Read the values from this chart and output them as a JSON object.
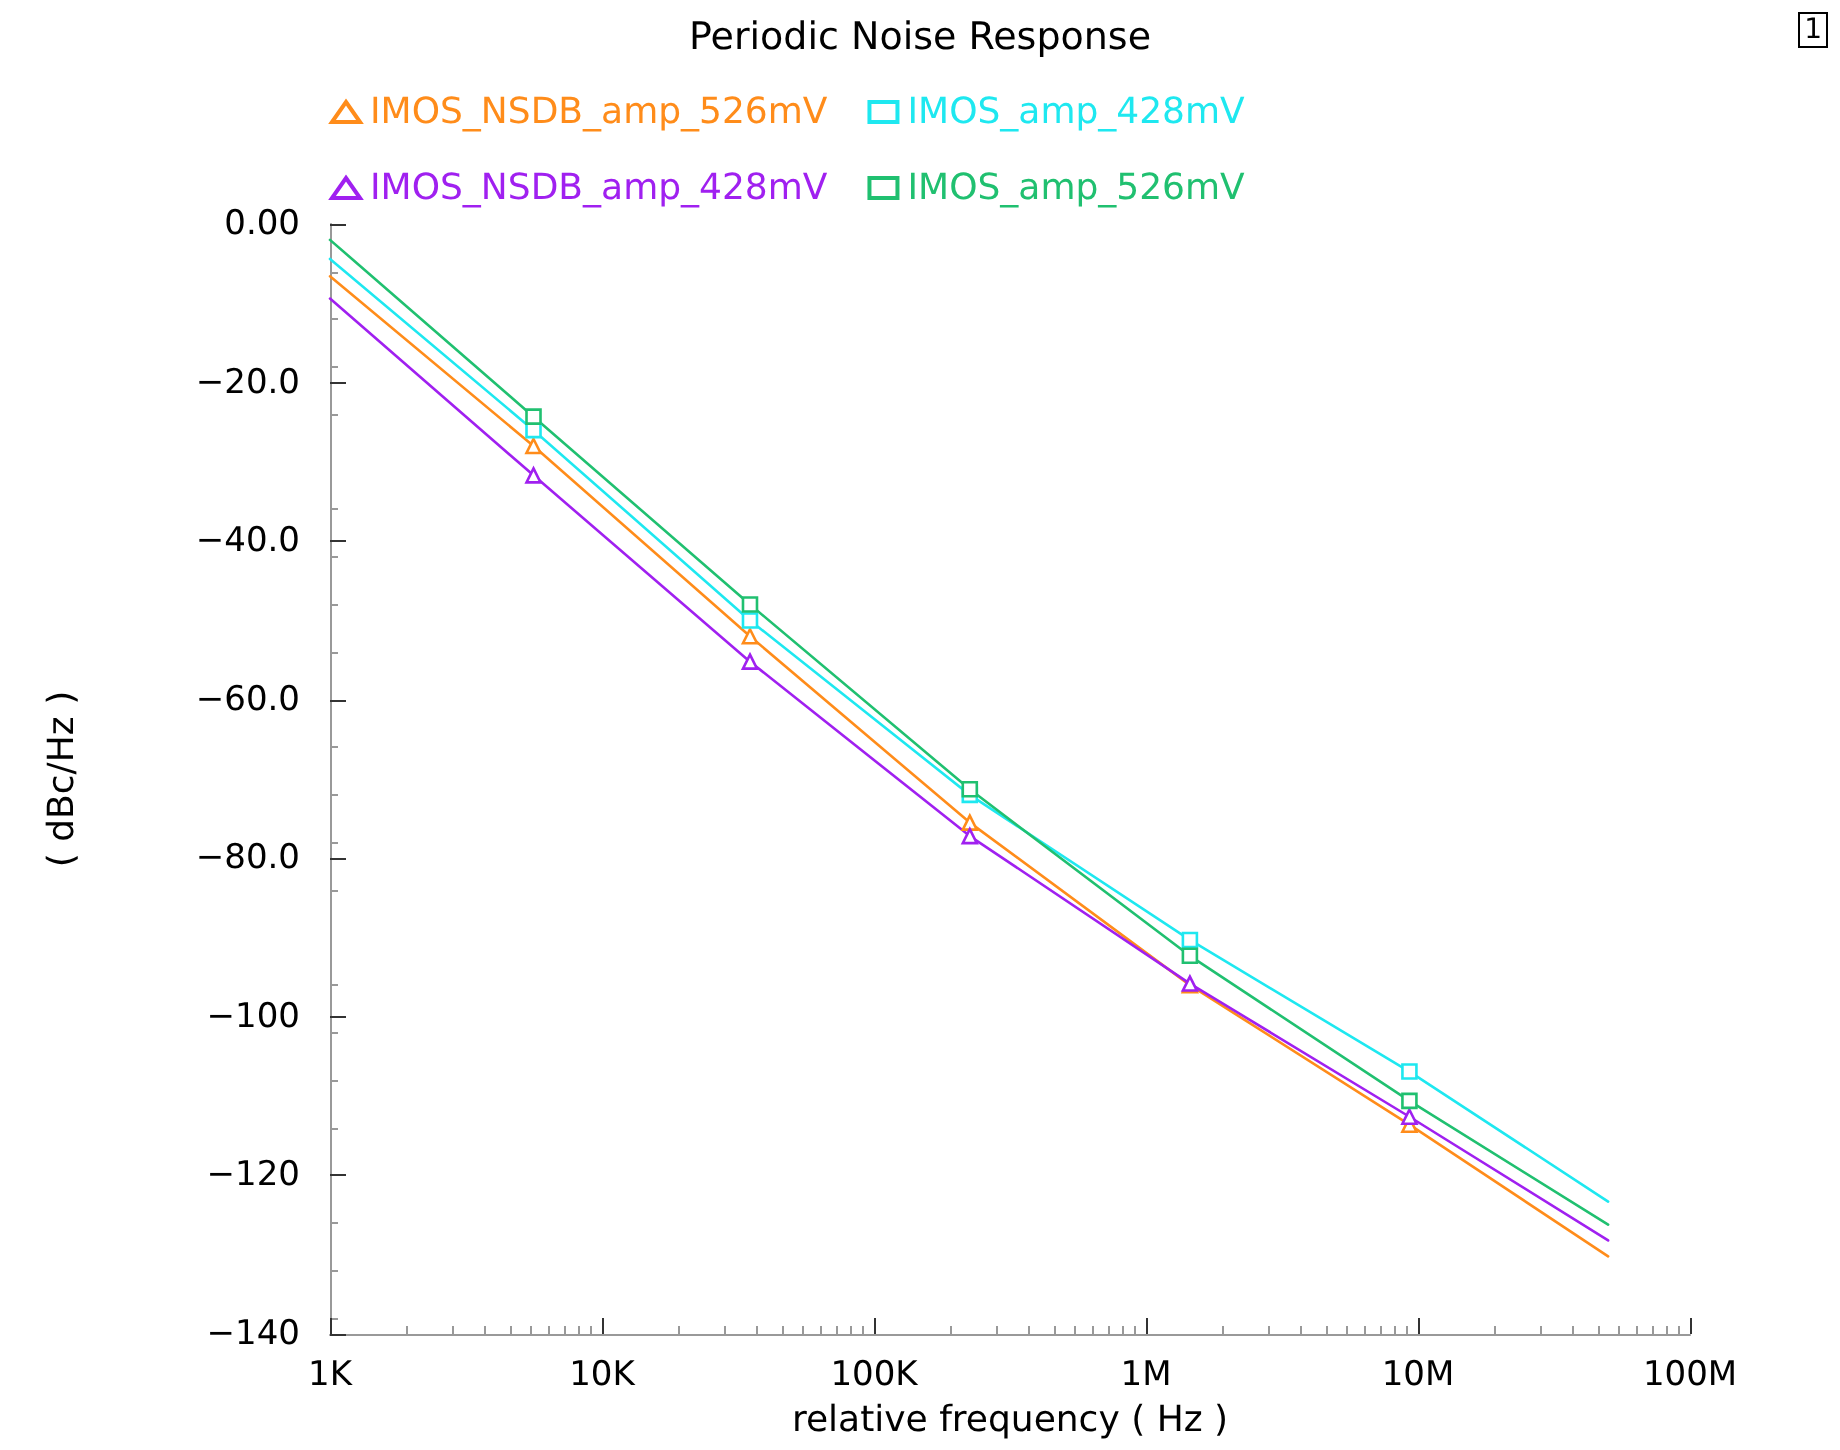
{
  "chart_data": {
    "type": "line",
    "title": "Periodic Noise Response",
    "xlabel": "relative frequency ( Hz )",
    "ylabel": "( dBc/Hz )",
    "annotations": [
      "1"
    ],
    "x": [
      1000,
      5600,
      35000,
      225000,
      1450000,
      9300000,
      50000000
    ],
    "series": [
      {
        "name": "IMOS_NSDB_amp_526mV",
        "color": "#ff8c1a",
        "marker": "triangle",
        "values": [
          -6.6,
          -28,
          -52,
          -75.5,
          -96,
          -113.6,
          -130.2
        ]
      },
      {
        "name": "IMOS_amp_428mV",
        "color": "#1ee8f0",
        "marker": "square",
        "values": [
          -4.4,
          -26,
          -50,
          -72,
          -90.3,
          -106.9,
          -123.3
        ]
      },
      {
        "name": "IMOS_NSDB_amp_428mV",
        "color": "#a020f0",
        "marker": "triangle",
        "values": [
          -9.4,
          -31.7,
          -55.2,
          -77.2,
          -95.8,
          -112.6,
          -128.2
        ]
      },
      {
        "name": "IMOS_amp_526mV",
        "color": "#20c070",
        "marker": "square",
        "values": [
          -2,
          -24.3,
          -48,
          -71.3,
          -92.3,
          -110.6,
          -126.2
        ]
      }
    ],
    "log": "x",
    "xlim": [
      1000,
      100000000
    ],
    "xticks": [
      {
        "value": 1000,
        "label": "1K"
      },
      {
        "value": 10000,
        "label": "10K"
      },
      {
        "value": 100000,
        "label": "100K"
      },
      {
        "value": 1000000,
        "label": "1M"
      },
      {
        "value": 10000000,
        "label": "10M"
      },
      {
        "value": 100000000,
        "label": "100M"
      }
    ],
    "ylim": [
      -140,
      0
    ],
    "yticks": [
      {
        "value": 0,
        "label": "0.00"
      },
      {
        "value": -20,
        "label": "−20.0"
      },
      {
        "value": -40,
        "label": "−40.0"
      },
      {
        "value": -60,
        "label": "−60.0"
      },
      {
        "value": -80,
        "label": "−80.0"
      },
      {
        "value": -100,
        "label": "−100"
      },
      {
        "value": -120,
        "label": "−120"
      },
      {
        "value": -140,
        "label": "−140"
      }
    ],
    "grid": false,
    "legend": "top",
    "line_style": "solid"
  }
}
